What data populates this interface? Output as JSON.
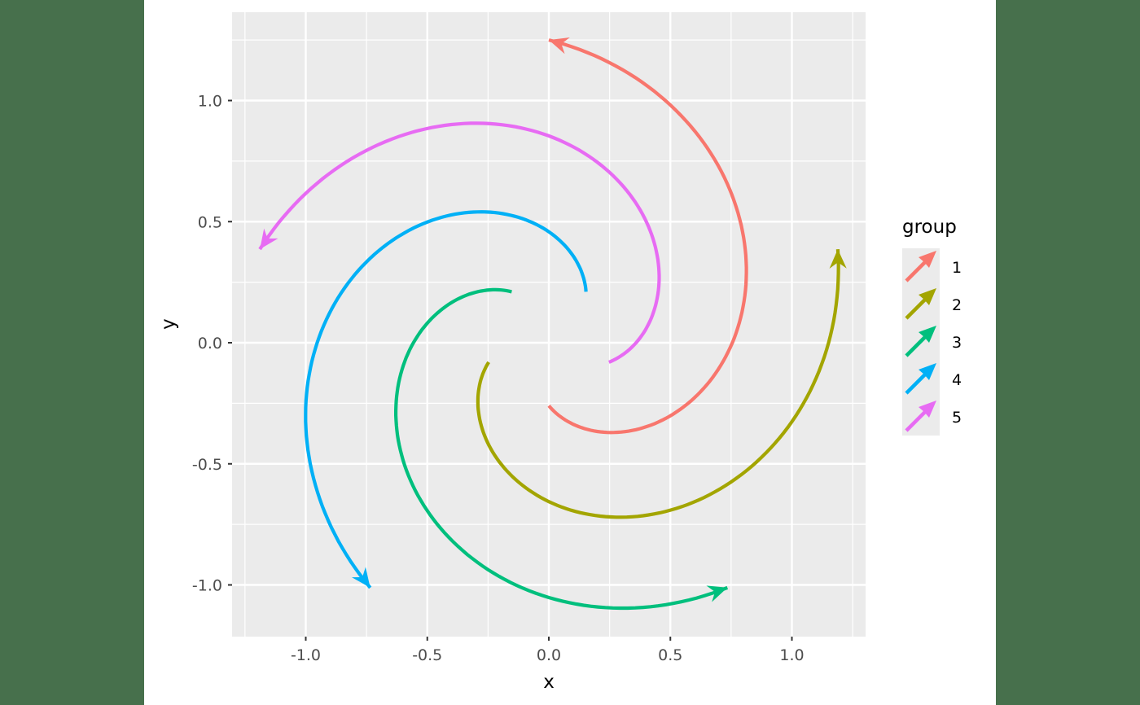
{
  "chart_data": {
    "type": "line",
    "title": "",
    "xlabel": "x",
    "ylabel": "y",
    "xlim": [
      -1.3,
      1.3
    ],
    "ylim": [
      -1.21,
      1.35
    ],
    "x_ticks": [
      "-1.0",
      "-0.5",
      "0.0",
      "0.5",
      "1.0"
    ],
    "x_tick_values": [
      -1.0,
      -0.5,
      0.0,
      0.5,
      1.0
    ],
    "y_ticks": [
      "-1.0",
      "-0.5",
      "0.0",
      "0.5",
      "1.0"
    ],
    "y_tick_values": [
      -1.0,
      -0.5,
      0.0,
      0.5,
      1.0
    ],
    "grid": true,
    "legend": {
      "title": "group",
      "position": "right"
    },
    "spiral": {
      "r_start": 0.26,
      "r_end": 1.25,
      "theta_start_deg": -90,
      "theta_end_deg": 90,
      "rotation_step_deg": 72,
      "arrows": "end"
    },
    "series": [
      {
        "name": "1",
        "color": "#F8766D",
        "rotation_deg": 0,
        "start": [
          0.0,
          -0.26
        ],
        "end": [
          0.0,
          1.25
        ]
      },
      {
        "name": "2",
        "color": "#A3A500",
        "rotation_deg": -72,
        "start": [
          -0.25,
          -0.08
        ],
        "end": [
          1.19,
          0.38
        ]
      },
      {
        "name": "3",
        "color": "#00BF7D",
        "rotation_deg": -144,
        "start": [
          -0.15,
          0.21
        ],
        "end": [
          0.73,
          -1.01
        ]
      },
      {
        "name": "4",
        "color": "#00B0F6",
        "rotation_deg": -216,
        "start": [
          0.15,
          0.21
        ],
        "end": [
          -0.74,
          -1.01
        ]
      },
      {
        "name": "5",
        "color": "#E76BF3",
        "rotation_deg": -288,
        "start": [
          0.25,
          -0.08
        ],
        "end": [
          -1.19,
          0.38
        ]
      }
    ]
  }
}
